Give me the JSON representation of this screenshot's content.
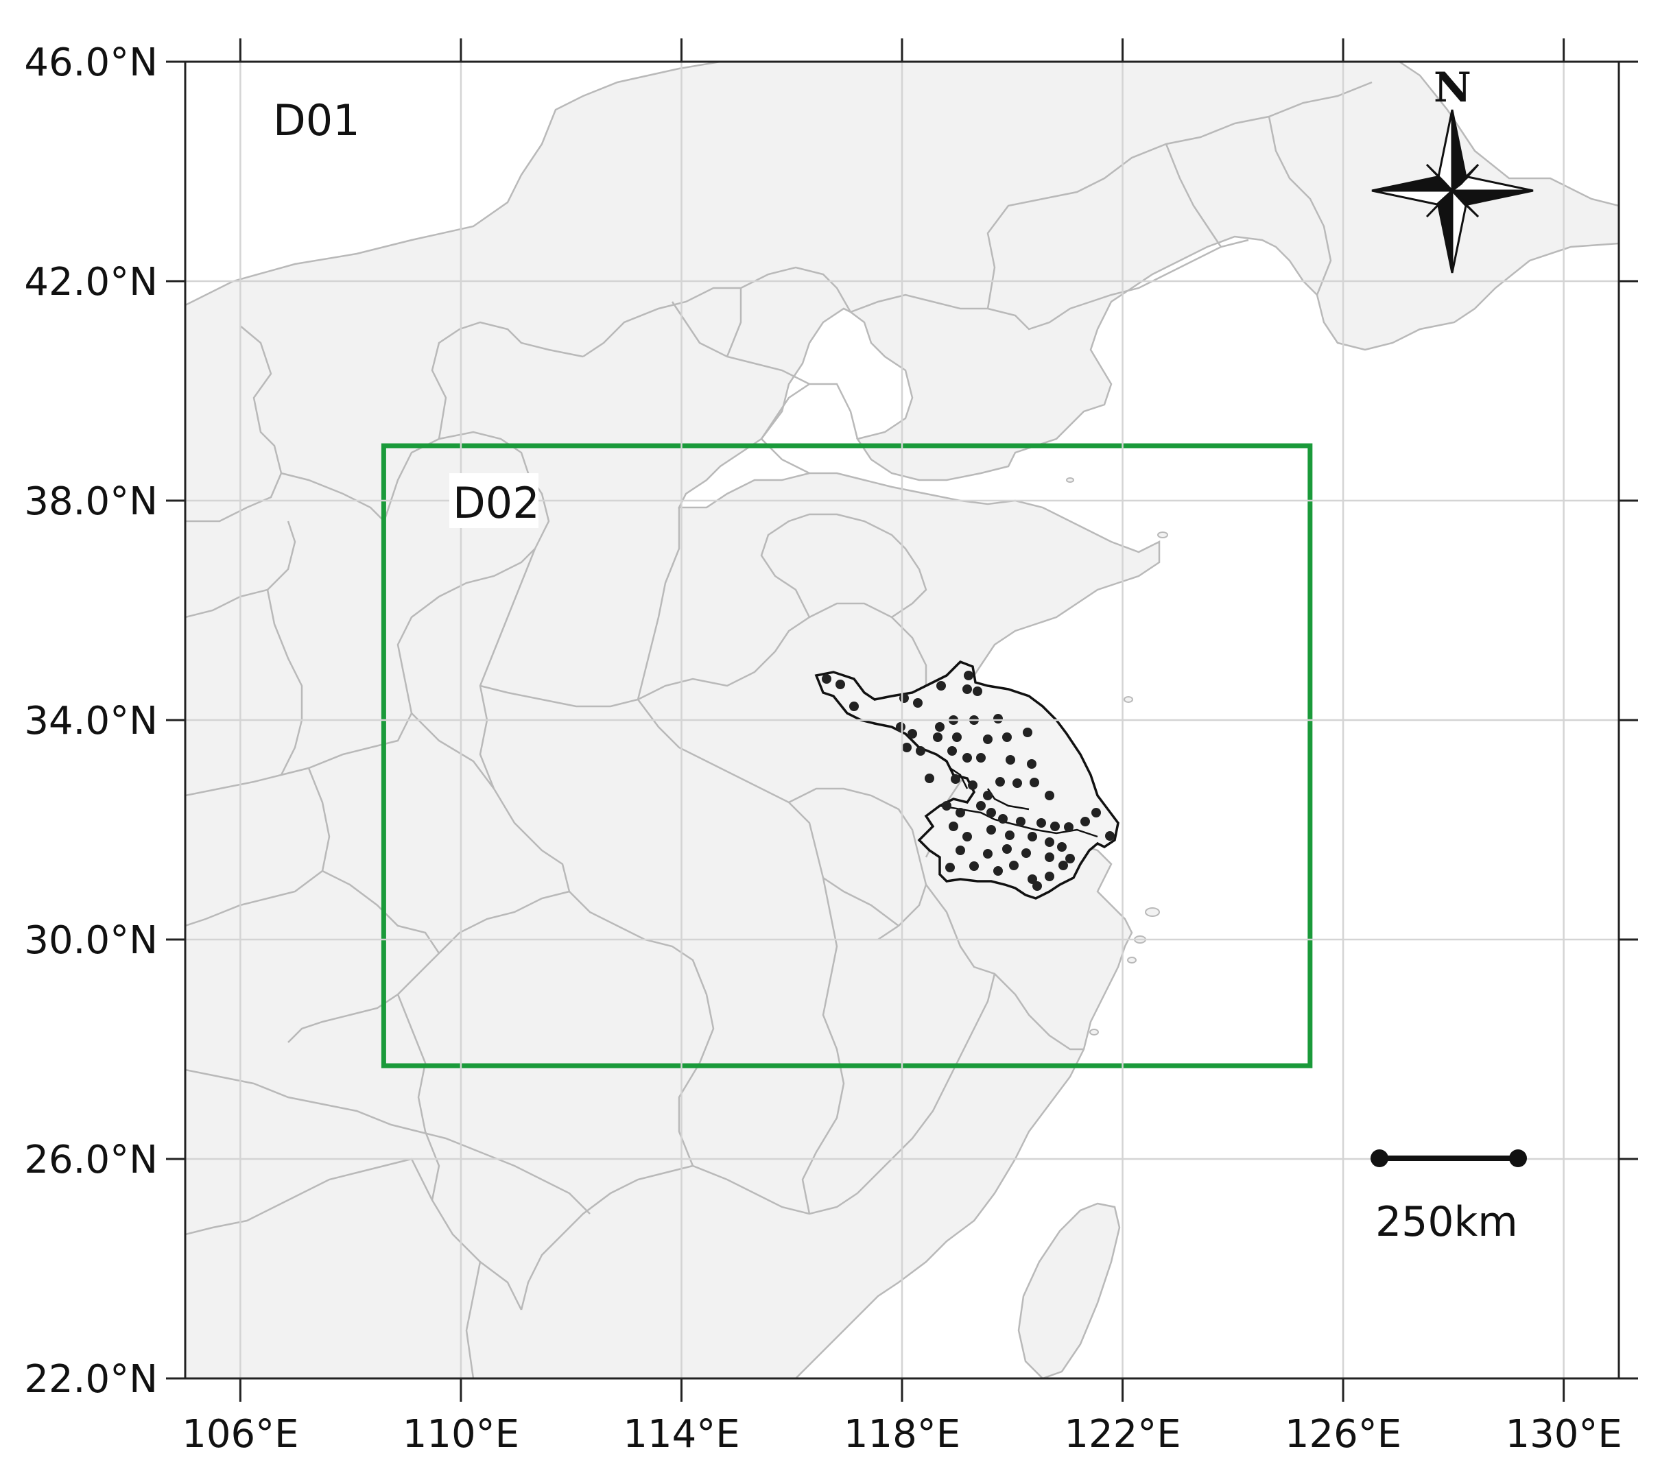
{
  "map": {
    "extent": {
      "lon_min": 105.0,
      "lon_max": 131.0,
      "lat_min": 22.0,
      "lat_max": 46.0
    },
    "lat_ticks": [
      {
        "value": 46,
        "label": "46.0°N"
      },
      {
        "value": 42,
        "label": "42.0°N"
      },
      {
        "value": 38,
        "label": "38.0°N"
      },
      {
        "value": 34,
        "label": "34.0°N"
      },
      {
        "value": 30,
        "label": "30.0°N"
      },
      {
        "value": 26,
        "label": "26.0°N"
      },
      {
        "value": 22,
        "label": "22.0°N"
      }
    ],
    "lon_ticks": [
      {
        "value": 106,
        "label": "106°E"
      },
      {
        "value": 110,
        "label": "110°E"
      },
      {
        "value": 114,
        "label": "114°E"
      },
      {
        "value": 118,
        "label": "118°E"
      },
      {
        "value": 122,
        "label": "122°E"
      },
      {
        "value": 126,
        "label": "126°E"
      },
      {
        "value": 130,
        "label": "130°E"
      }
    ],
    "grid": true,
    "colors": {
      "land": "#f2f2f2",
      "sea": "#ffffff",
      "border": "#b9b9b9",
      "grid": "#d4d4d4",
      "domain_box": "#1a9a3a",
      "study_outline": "#111111",
      "station": "#222222"
    },
    "domains": [
      {
        "name": "D01",
        "label": "D01"
      },
      {
        "name": "D02",
        "label": "D02",
        "lon_min": 108.6,
        "lon_max": 125.4,
        "lat_min": 27.7,
        "lat_max": 39.0
      }
    ],
    "north_arrow": {
      "label": "N",
      "icon": "compass-rose-icon"
    },
    "scale_bar": {
      "label": "250km",
      "km": 250
    }
  }
}
